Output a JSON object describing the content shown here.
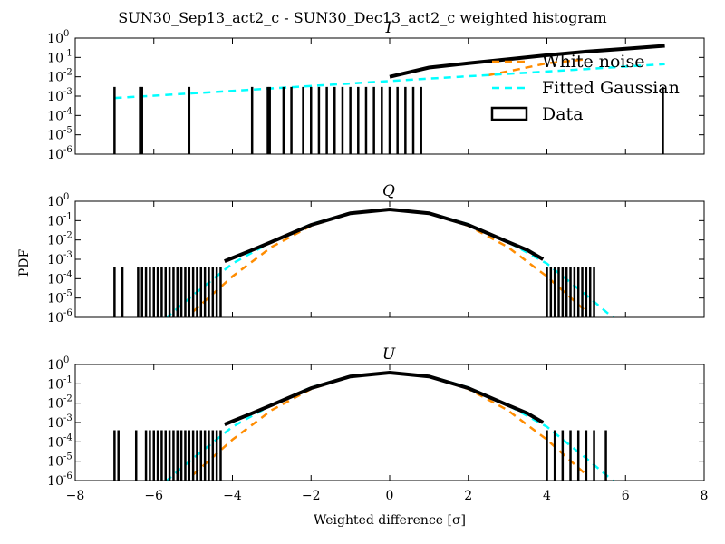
{
  "figure": {
    "title": "SUN30_Sep13_act2_c - SUN30_Dec13_act2_c weighted histogram",
    "ylabel": "PDF",
    "xlabel": "Weighted difference [σ]"
  },
  "legend": {
    "placement": "upper-right of top panel",
    "entries": [
      {
        "label": "White noise",
        "style": "dashed",
        "color": "#ff8c00"
      },
      {
        "label": "Fitted Gaussian",
        "style": "dashed",
        "color": "#00ffff"
      },
      {
        "label": "Data",
        "style": "box",
        "color": "#000000"
      }
    ]
  },
  "colors": {
    "white_noise": "#ff8c00",
    "fitted_gaussian": "#00ffff",
    "data": "#000000"
  },
  "chart_data": [
    {
      "type": "line",
      "title": "I",
      "xlim": [
        -8,
        8
      ],
      "ylim": [
        1e-06,
        1
      ],
      "yscale": "log",
      "xticks": [
        "−8",
        "−6",
        "−4",
        "−2",
        "0",
        "2",
        "4",
        "6",
        "8"
      ],
      "yticks": [
        {
          "base": "10",
          "exp": "0"
        },
        {
          "base": "10",
          "exp": "-1"
        },
        {
          "base": "10",
          "exp": "-2"
        },
        {
          "base": "10",
          "exp": "-3"
        },
        {
          "base": "10",
          "exp": "-4"
        },
        {
          "base": "10",
          "exp": "-5"
        },
        {
          "base": "10",
          "exp": "-6"
        }
      ],
      "series": [
        {
          "name": "White noise",
          "style": "dashed",
          "points": [
            [
              2.5,
              0.012
            ],
            [
              3.3,
              0.025
            ],
            [
              4.0,
              0.05
            ],
            [
              5.0,
              0.08
            ]
          ]
        },
        {
          "name": "Fitted Gaussian",
          "style": "dashed",
          "points": [
            [
              -7,
              0.0008
            ],
            [
              -5,
              0.0014
            ],
            [
              -3,
              0.0025
            ],
            [
              -1,
              0.0045
            ],
            [
              1,
              0.008
            ],
            [
              3,
              0.014
            ],
            [
              5,
              0.025
            ],
            [
              7,
              0.045
            ]
          ]
        },
        {
          "name": "Data",
          "style": "step",
          "points": [
            [
              0,
              0.01
            ],
            [
              1,
              0.03
            ],
            [
              2,
              0.05
            ],
            [
              3,
              0.08
            ],
            [
              4,
              0.13
            ],
            [
              5,
              0.2
            ],
            [
              6,
              0.28
            ],
            [
              7,
              0.4
            ]
          ],
          "spikes": [
            -7,
            -6.35,
            -6.3,
            -5.1,
            -3.5,
            -3.1,
            -3.05,
            -2.7,
            -2.5,
            -2.2,
            -2.0,
            -1.8,
            -1.6,
            -1.4,
            -1.2,
            -1.0,
            -0.8,
            -0.6,
            -0.4,
            -0.2,
            0.0,
            0.2,
            0.4,
            0.6,
            0.8,
            6.95
          ],
          "spike_top": 0.003
        }
      ]
    },
    {
      "type": "line",
      "title": "Q",
      "xlim": [
        -8,
        8
      ],
      "ylim": [
        1e-06,
        1
      ],
      "yscale": "log",
      "xticks": [
        "−8",
        "−6",
        "−4",
        "−2",
        "0",
        "2",
        "4",
        "6",
        "8"
      ],
      "yticks": [
        {
          "base": "10",
          "exp": "0"
        },
        {
          "base": "10",
          "exp": "-1"
        },
        {
          "base": "10",
          "exp": "-2"
        },
        {
          "base": "10",
          "exp": "-3"
        },
        {
          "base": "10",
          "exp": "-4"
        },
        {
          "base": "10",
          "exp": "-5"
        },
        {
          "base": "10",
          "exp": "-6"
        }
      ],
      "series": [
        {
          "name": "White noise",
          "style": "dashed",
          "points": [
            [
              -5.0,
              2e-06
            ],
            [
              -4.0,
              0.00013
            ],
            [
              -3.0,
              0.0044
            ],
            [
              -2.0,
              0.054
            ],
            [
              -1.0,
              0.24
            ],
            [
              0,
              0.4
            ],
            [
              1.0,
              0.24
            ],
            [
              2.0,
              0.054
            ],
            [
              3.0,
              0.0044
            ],
            [
              4.0,
              0.00013
            ],
            [
              5.0,
              2e-06
            ]
          ]
        },
        {
          "name": "Fitted Gaussian",
          "style": "dashed",
          "points": [
            [
              -5.7,
              9e-07
            ],
            [
              -5.0,
              1.4e-05
            ],
            [
              -4.0,
              0.0006
            ],
            [
              -3.0,
              0.008
            ],
            [
              -2.0,
              0.065
            ],
            [
              -1.0,
              0.25
            ],
            [
              0,
              0.38
            ],
            [
              1.0,
              0.25
            ],
            [
              2.0,
              0.065
            ],
            [
              3.0,
              0.008
            ],
            [
              4.0,
              0.0006
            ],
            [
              5.0,
              1.4e-05
            ],
            [
              5.7,
              9e-07
            ]
          ]
        },
        {
          "name": "Data",
          "style": "step",
          "points": [
            [
              -4.2,
              0.0008
            ],
            [
              -3.5,
              0.003
            ],
            [
              -3.0,
              0.008
            ],
            [
              -2.0,
              0.06
            ],
            [
              -1.0,
              0.24
            ],
            [
              0,
              0.38
            ],
            [
              1.0,
              0.24
            ],
            [
              2.0,
              0.06
            ],
            [
              3.0,
              0.008
            ],
            [
              3.5,
              0.003
            ],
            [
              3.9,
              0.001
            ]
          ],
          "spikes": [
            -7,
            -6.8,
            -6.4,
            -6.3,
            -6.2,
            -6.1,
            -6.0,
            -5.9,
            -5.8,
            -5.7,
            -5.6,
            -5.5,
            -5.4,
            -5.3,
            -5.2,
            -5.1,
            -5.0,
            -4.9,
            -4.8,
            -4.7,
            -4.6,
            -4.5,
            -4.4,
            -4.3,
            4.0,
            4.1,
            4.2,
            4.3,
            4.4,
            4.5,
            4.6,
            4.7,
            4.8,
            4.9,
            5.0,
            5.1,
            5.2
          ],
          "spike_top": 0.0004
        }
      ]
    },
    {
      "type": "line",
      "title": "U",
      "xlim": [
        -8,
        8
      ],
      "ylim": [
        1e-06,
        1
      ],
      "yscale": "log",
      "xticks": [
        "−8",
        "−6",
        "−4",
        "−2",
        "0",
        "2",
        "4",
        "6",
        "8"
      ],
      "yticks": [
        {
          "base": "10",
          "exp": "0"
        },
        {
          "base": "10",
          "exp": "-1"
        },
        {
          "base": "10",
          "exp": "-2"
        },
        {
          "base": "10",
          "exp": "-3"
        },
        {
          "base": "10",
          "exp": "-4"
        },
        {
          "base": "10",
          "exp": "-5"
        },
        {
          "base": "10",
          "exp": "-6"
        }
      ],
      "series": [
        {
          "name": "White noise",
          "style": "dashed",
          "points": [
            [
              -5.0,
              2e-06
            ],
            [
              -4.0,
              0.00013
            ],
            [
              -3.0,
              0.0044
            ],
            [
              -2.0,
              0.054
            ],
            [
              -1.0,
              0.24
            ],
            [
              0,
              0.4
            ],
            [
              1.0,
              0.24
            ],
            [
              2.0,
              0.054
            ],
            [
              3.0,
              0.0044
            ],
            [
              4.0,
              0.00013
            ],
            [
              5.0,
              2e-06
            ]
          ]
        },
        {
          "name": "Fitted Gaussian",
          "style": "dashed",
          "points": [
            [
              -5.7,
              9e-07
            ],
            [
              -5.0,
              1.4e-05
            ],
            [
              -4.0,
              0.0006
            ],
            [
              -3.0,
              0.008
            ],
            [
              -2.0,
              0.065
            ],
            [
              -1.0,
              0.25
            ],
            [
              0,
              0.38
            ],
            [
              1.0,
              0.25
            ],
            [
              2.0,
              0.065
            ],
            [
              3.0,
              0.008
            ],
            [
              4.0,
              0.0006
            ],
            [
              5.0,
              1.4e-05
            ],
            [
              5.7,
              9e-07
            ]
          ]
        },
        {
          "name": "Data",
          "style": "step",
          "points": [
            [
              -4.2,
              0.0008
            ],
            [
              -3.5,
              0.003
            ],
            [
              -3.0,
              0.008
            ],
            [
              -2.0,
              0.06
            ],
            [
              -1.0,
              0.24
            ],
            [
              0,
              0.38
            ],
            [
              1.0,
              0.24
            ],
            [
              2.0,
              0.06
            ],
            [
              3.0,
              0.008
            ],
            [
              3.5,
              0.003
            ],
            [
              3.9,
              0.001
            ]
          ],
          "spikes": [
            -7,
            -6.9,
            -6.45,
            -6.2,
            -6.1,
            -6.0,
            -5.9,
            -5.8,
            -5.7,
            -5.6,
            -5.5,
            -5.4,
            -5.3,
            -5.2,
            -5.1,
            -5.0,
            -4.9,
            -4.8,
            -4.7,
            -4.6,
            -4.5,
            -4.4,
            -4.3,
            4.0,
            4.2,
            4.4,
            4.6,
            4.8,
            5.0,
            5.2,
            5.5
          ],
          "spike_top": 0.0004
        }
      ]
    }
  ]
}
